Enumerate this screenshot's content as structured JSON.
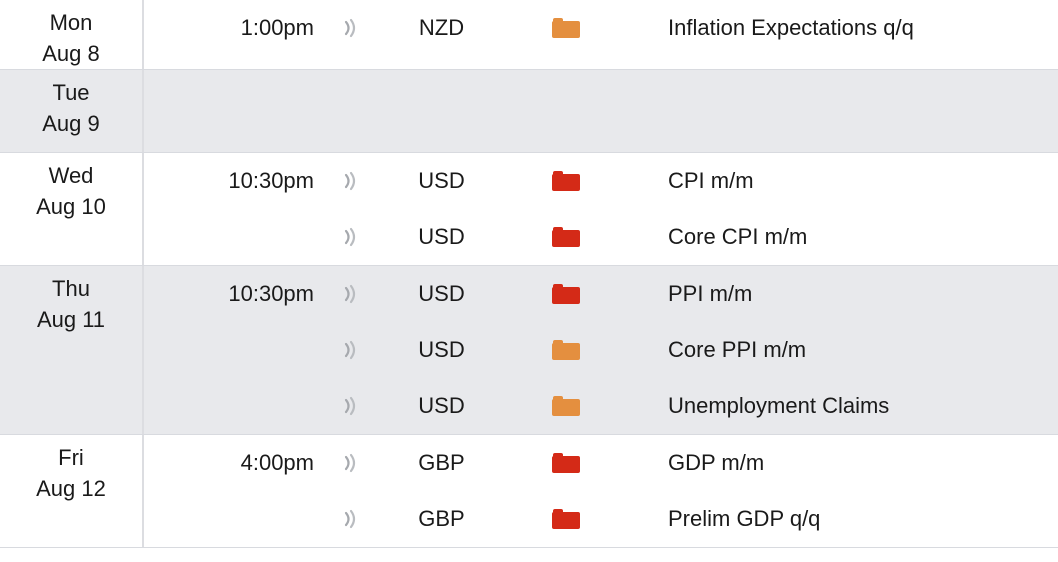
{
  "colors": {
    "impact_high": "#d42a17",
    "impact_medium": "#e48f3f",
    "row_alt_bg": "#e8e9ec"
  },
  "days": [
    {
      "weekday": "Mon",
      "date": "Aug 8",
      "events": [
        {
          "time": "1:00pm",
          "currency": "NZD",
          "impact": "medium",
          "title": "Inflation Expectations q/q"
        }
      ]
    },
    {
      "weekday": "Tue",
      "date": "Aug 9",
      "events": []
    },
    {
      "weekday": "Wed",
      "date": "Aug 10",
      "events": [
        {
          "time": "10:30pm",
          "currency": "USD",
          "impact": "high",
          "title": "CPI m/m"
        },
        {
          "time": "",
          "currency": "USD",
          "impact": "high",
          "title": "Core CPI m/m"
        }
      ]
    },
    {
      "weekday": "Thu",
      "date": "Aug 11",
      "events": [
        {
          "time": "10:30pm",
          "currency": "USD",
          "impact": "high",
          "title": "PPI m/m"
        },
        {
          "time": "",
          "currency": "USD",
          "impact": "medium",
          "title": "Core PPI m/m"
        },
        {
          "time": "",
          "currency": "USD",
          "impact": "medium",
          "title": "Unemployment Claims"
        }
      ]
    },
    {
      "weekday": "Fri",
      "date": "Aug 12",
      "events": [
        {
          "time": "4:00pm",
          "currency": "GBP",
          "impact": "high",
          "title": "GDP m/m"
        },
        {
          "time": "",
          "currency": "GBP",
          "impact": "high",
          "title": "Prelim GDP q/q"
        }
      ]
    }
  ]
}
